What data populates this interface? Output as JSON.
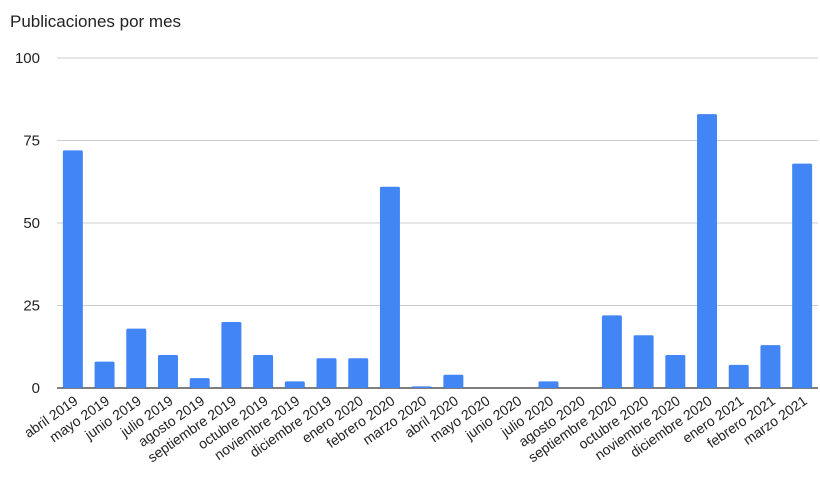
{
  "chart_data": {
    "type": "bar",
    "title": "Publicaciones por mes",
    "xlabel": "",
    "ylabel": "",
    "ylim": [
      0,
      100
    ],
    "yticks": [
      0,
      25,
      50,
      75,
      100
    ],
    "grid": true,
    "legend": "none",
    "bar_color": "#4285f4",
    "grid_color": "#cccccc",
    "categories": [
      "abril 2019",
      "mayo 2019",
      "junio 2019",
      "julio 2019",
      "agosto 2019",
      "septiembre 2019",
      "octubre 2019",
      "noviembre 2019",
      "diciembre 2019",
      "enero 2020",
      "febrero 2020",
      "marzo 2020",
      "abril 2020",
      "mayo 2020",
      "junio 2020",
      "julio 2020",
      "agosto 2020",
      "septiembre 2020",
      "octubre 2020",
      "noviembre 2020",
      "diciembre 2020",
      "enero 2021",
      "febrero 2021",
      "marzo 2021"
    ],
    "values": [
      72,
      8,
      18,
      10,
      3,
      20,
      10,
      2,
      9,
      9,
      61,
      0.5,
      4,
      0,
      0,
      2,
      0,
      22,
      16,
      10,
      83,
      7,
      13,
      68
    ]
  }
}
